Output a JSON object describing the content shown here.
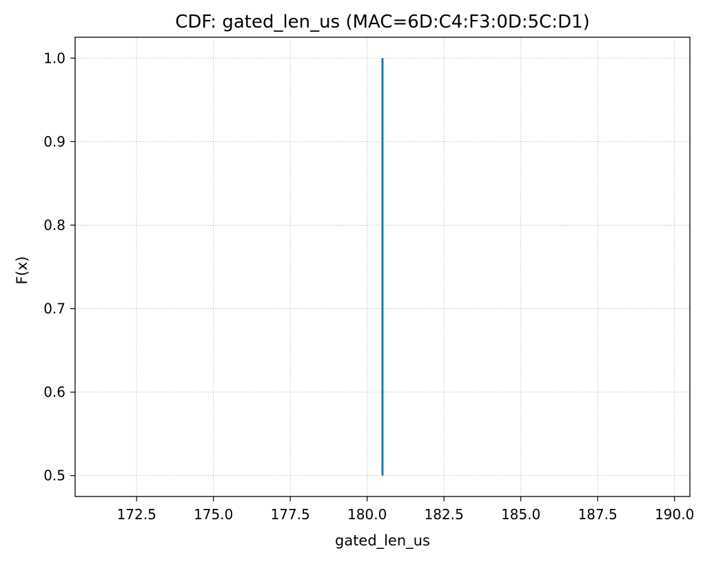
{
  "chart_data": {
    "type": "line",
    "title": "CDF: gated_len_us (MAC=6D:C4:F3:0D:5C:D1)",
    "xlabel": "gated_len_us",
    "ylabel": "F(x)",
    "xlim": [
      170.5,
      190.5
    ],
    "ylim": [
      0.475,
      1.025
    ],
    "xticks": [
      172.5,
      175.0,
      177.5,
      180.0,
      182.5,
      185.0,
      187.5,
      190.0
    ],
    "xtick_labels": [
      "172.5",
      "175.0",
      "177.5",
      "180.0",
      "182.5",
      "185.0",
      "187.5",
      "190.0"
    ],
    "yticks": [
      0.5,
      0.6,
      0.7,
      0.8,
      0.9,
      1.0
    ],
    "ytick_labels": [
      "0.5",
      "0.6",
      "0.7",
      "0.8",
      "0.9",
      "1.0"
    ],
    "grid": true,
    "series": [
      {
        "x": [
          180.5,
          180.5
        ],
        "y": [
          0.5,
          1.0
        ],
        "color": "#1f77b4"
      }
    ]
  }
}
